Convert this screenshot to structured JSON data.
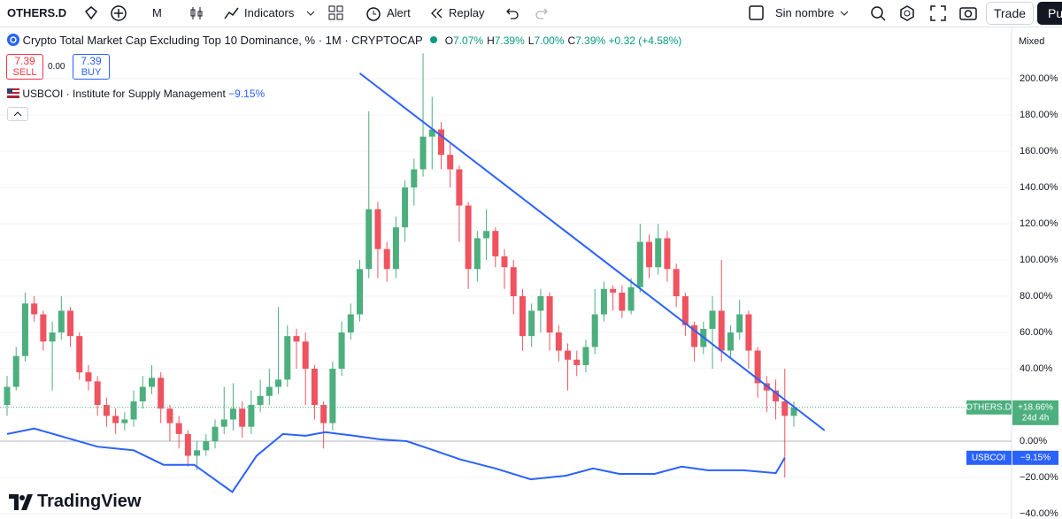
{
  "toolbar": {
    "symbol": "OTHERS.D",
    "interval": "M",
    "indicators": "Indicators",
    "alert": "Alert",
    "replay": "Replay",
    "layout": "Sin nombre",
    "trade": "Trade",
    "publish": "Pu"
  },
  "legend": {
    "title": "Crypto Total Market Cap Excluding Top 10 Dominance, % · 1M · CRYPTOCAP",
    "ohlc": [
      {
        "key": "O",
        "value": "7.07%"
      },
      {
        "key": "H",
        "value": "7.39%"
      },
      {
        "key": "L",
        "value": "7.00%"
      },
      {
        "key": "C",
        "value": "7.39%"
      }
    ],
    "change": "+0.32 (+4.58%)",
    "sell_price": "7.39",
    "sell": "SELL",
    "spread": "0.00",
    "buy_price": "7.39",
    "buy": "BUY",
    "indicator": "USBCOI · Institute for Supply Management",
    "indicator_value": "−9.15%"
  },
  "scale_mode": "Mixed",
  "brand": "TradingView",
  "chart_data": {
    "type": "candlestick",
    "up_color": "#4caf7d",
    "down_color": "#ef5360",
    "open": [
      20,
      30,
      47,
      76,
      70,
      55,
      60,
      72,
      58,
      38,
      33,
      20,
      14,
      10,
      12,
      22,
      30,
      35,
      18,
      10,
      4,
      -8,
      -5,
      0,
      8,
      12,
      18,
      8,
      20,
      25,
      30,
      34,
      58,
      55,
      40,
      20,
      10,
      40,
      60,
      70,
      95,
      128,
      106,
      95,
      118,
      140,
      150,
      168,
      172,
      158,
      150,
      130,
      95,
      112,
      116,
      102,
      96,
      80,
      58,
      72,
      80,
      60,
      50,
      45,
      42,
      52,
      70,
      84,
      82,
      72,
      85,
      110,
      96,
      112,
      95,
      80,
      64,
      52,
      62,
      72,
      50,
      60,
      70,
      50,
      32,
      28,
      22,
      14
    ],
    "high": [
      36,
      52,
      82,
      80,
      72,
      66,
      80,
      74,
      60,
      42,
      36,
      24,
      18,
      16,
      28,
      36,
      42,
      38,
      20,
      14,
      6,
      0,
      4,
      12,
      30,
      32,
      22,
      28,
      34,
      40,
      74,
      64,
      62,
      60,
      42,
      22,
      44,
      66,
      76,
      100,
      182,
      132,
      110,
      124,
      144,
      156,
      214,
      190,
      176,
      164,
      152,
      132,
      116,
      128,
      118,
      106,
      100,
      84,
      76,
      84,
      82,
      64,
      54,
      50,
      56,
      84,
      88,
      86,
      86,
      90,
      120,
      114,
      120,
      116,
      98,
      82,
      66,
      66,
      80,
      100,
      64,
      78,
      72,
      52,
      36,
      34,
      40,
      22
    ],
    "low": [
      14,
      28,
      44,
      66,
      50,
      28,
      56,
      52,
      34,
      28,
      14,
      8,
      4,
      6,
      8,
      18,
      26,
      10,
      0,
      -4,
      -14,
      -16,
      -8,
      -4,
      4,
      6,
      2,
      4,
      16,
      20,
      26,
      30,
      40,
      20,
      12,
      -4,
      6,
      36,
      56,
      66,
      90,
      90,
      88,
      90,
      110,
      130,
      146,
      150,
      150,
      140,
      110,
      84,
      88,
      100,
      96,
      84,
      70,
      50,
      52,
      60,
      50,
      44,
      28,
      36,
      38,
      48,
      66,
      72,
      68,
      70,
      82,
      90,
      92,
      88,
      74,
      58,
      44,
      48,
      40,
      44,
      46,
      56,
      40,
      24,
      16,
      12,
      -20,
      8
    ],
    "close": [
      30,
      47,
      76,
      70,
      55,
      60,
      72,
      58,
      38,
      33,
      20,
      14,
      10,
      12,
      22,
      30,
      35,
      18,
      10,
      4,
      -8,
      -5,
      0,
      8,
      12,
      18,
      8,
      20,
      25,
      30,
      34,
      58,
      55,
      40,
      20,
      10,
      40,
      60,
      70,
      95,
      128,
      106,
      95,
      118,
      140,
      150,
      168,
      172,
      158,
      150,
      130,
      95,
      112,
      116,
      102,
      96,
      80,
      58,
      72,
      80,
      60,
      50,
      45,
      42,
      52,
      70,
      84,
      82,
      72,
      85,
      110,
      96,
      112,
      95,
      80,
      64,
      52,
      62,
      72,
      50,
      60,
      70,
      50,
      32,
      28,
      22,
      14,
      18.66
    ],
    "ylim": [
      -42.9,
      228.3
    ],
    "yticks": [
      {
        "value": 200,
        "label": "200.00%"
      },
      {
        "value": 180,
        "label": "180.00%"
      },
      {
        "value": 160,
        "label": "160.00%"
      },
      {
        "value": 140,
        "label": "140.00%"
      },
      {
        "value": 120,
        "label": "120.00%"
      },
      {
        "value": 100,
        "label": "100.00%"
      },
      {
        "value": 80,
        "label": "80.00%"
      },
      {
        "value": 60,
        "label": "60.00%"
      },
      {
        "value": 40,
        "label": "40.00%"
      },
      {
        "value": 20,
        "label": "20.00%"
      },
      {
        "value": 0,
        "label": "0.00%"
      },
      {
        "value": -20,
        "label": "−20.00%"
      },
      {
        "value": -40,
        "label": "−40.00%"
      }
    ],
    "grid": true,
    "trendline": {
      "color": "#2962ff",
      "x": [
        39,
        90.4
      ],
      "values": [
        203,
        6
      ]
    },
    "series": [
      {
        "name": "USBCOI",
        "color": "#2962ff",
        "x": [
          0,
          3,
          10,
          14,
          17.3,
          20.7,
          24.9,
          27.6,
          30.5,
          33,
          35.2,
          38.4,
          41.3,
          44.2,
          47.2,
          50.1,
          54,
          57.9,
          61.8,
          64.8,
          67.7,
          71.6,
          74.6,
          77.5,
          81.4,
          85,
          86
        ],
        "values": [
          4,
          7,
          -3,
          -5,
          -13,
          -13,
          -28,
          -8,
          4,
          3,
          5,
          3,
          1,
          0,
          -5,
          -10,
          -15,
          -21,
          -19,
          -15,
          -18,
          -18,
          -14,
          -16,
          -16,
          -17.6,
          -9.15
        ]
      }
    ],
    "price_labels": [
      {
        "name": "OTHERS.D",
        "value": 18.66,
        "label": "+18.66%",
        "countdown": "24d 4h",
        "color": "#4caf7d"
      },
      {
        "name": "USBCOI",
        "value": -9.15,
        "label": "−9.15%",
        "color": "#2962ff"
      }
    ]
  }
}
